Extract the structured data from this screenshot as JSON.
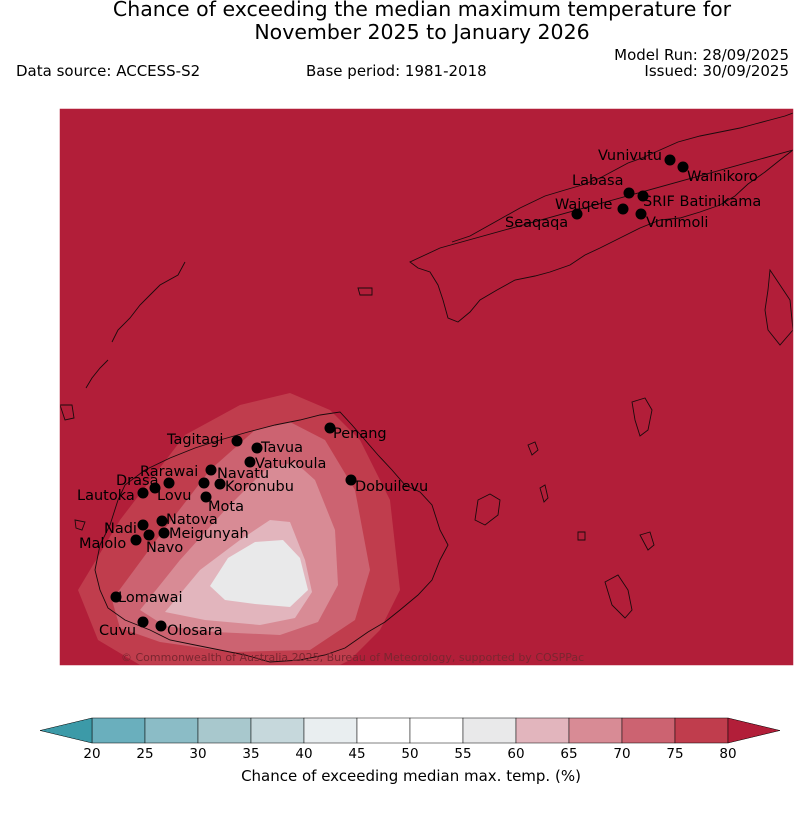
{
  "header": {
    "title_line1": "Chance of exceeding the median maximum temperature for",
    "title_line2": "November 2025 to January 2026",
    "data_source": "Data source: ACCESS-S2",
    "base_period": "Base period: 1981-2018",
    "model_run": "Model Run: 28/09/2025",
    "issued": "Issued: 30/09/2025"
  },
  "map": {
    "copyright": "© Commonwealth of Australia 2025, Bureau of Meteorology, supported by COSPPac",
    "background_category": "80",
    "stations": [
      {
        "name": "Vunivutu"
      },
      {
        "name": "Wainikoro"
      },
      {
        "name": "Labasa"
      },
      {
        "name": "SRIF Batinikama"
      },
      {
        "name": "Waiqele"
      },
      {
        "name": "Seaqaqa"
      },
      {
        "name": "Vunimoli"
      },
      {
        "name": "Penang"
      },
      {
        "name": "Tagitagi"
      },
      {
        "name": "Tavua"
      },
      {
        "name": "Vatukoula"
      },
      {
        "name": "Rarawai"
      },
      {
        "name": "Navatu"
      },
      {
        "name": "Drasa"
      },
      {
        "name": "Koronubu"
      },
      {
        "name": "Lautoka"
      },
      {
        "name": "Lovu"
      },
      {
        "name": "Mota"
      },
      {
        "name": "Dobuilevu"
      },
      {
        "name": "Natova"
      },
      {
        "name": "Nadi"
      },
      {
        "name": "Meigunyah"
      },
      {
        "name": "Malolo"
      },
      {
        "name": "Navo"
      },
      {
        "name": "Lomawai"
      },
      {
        "name": "Cuvu"
      },
      {
        "name": "Olosara"
      }
    ]
  },
  "colorbar": {
    "title": "Chance of exceeding median max. temp. (%)",
    "ticks": [
      "20",
      "25",
      "30",
      "35",
      "40",
      "45",
      "50",
      "55",
      "60",
      "65",
      "70",
      "75",
      "80"
    ],
    "bins": [
      "#6aafbd",
      "#8bbcc6",
      "#a8c8cd",
      "#c6d8dc",
      "#e9eef0",
      "#ffffff",
      "#ffffff",
      "#e9e9ea",
      "#e2b5bd",
      "#d88b95",
      "#cc6371",
      "#c03d4d"
    ],
    "under_color": "#3c9aa8",
    "over_color": "#b21e39"
  }
}
